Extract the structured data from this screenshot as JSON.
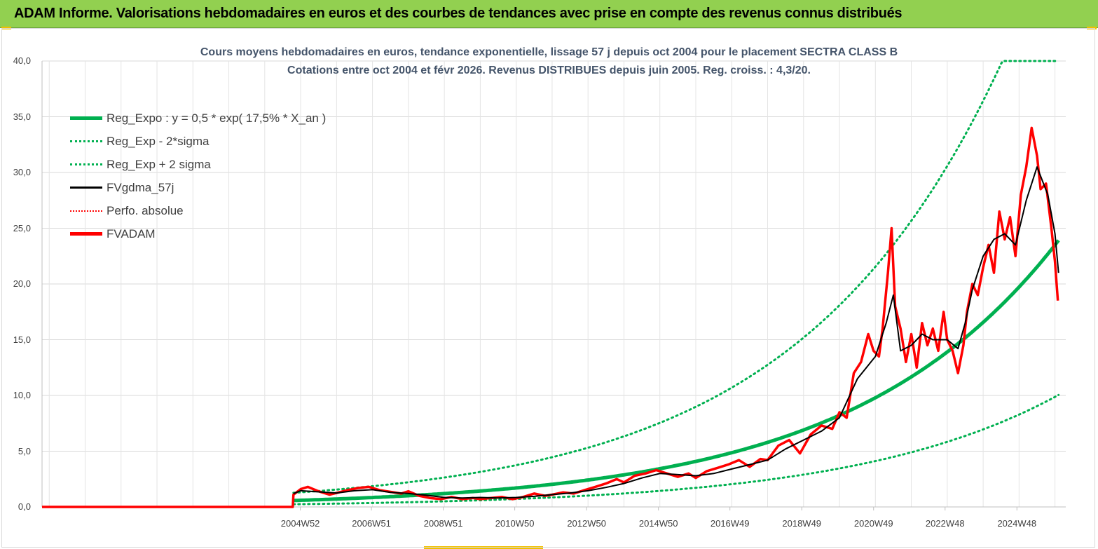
{
  "banner": {
    "title": "ADAM Informe. Valorisations hebdomadaires en euros et des courbes de tendances avec prise en compte des revenus connus distribués"
  },
  "colors": {
    "banner": "#92d050",
    "reg_expo": "#00b050",
    "fvgdma": "#000000",
    "fvadam": "#ff0000",
    "title": "#44546a"
  },
  "chart_data": {
    "type": "line",
    "title": "Cours moyens hebdomadaires en euros, tendance exponentielle, lissage 57 j depuis oct 2004 pour le placement SECTRA CLASS B",
    "subtitle": "Cotations entre oct 2004 et févr 2026. Revenus DISTRIBUES depuis juin 2005. Reg. croiss. : 4,3/20.",
    "xlabel": "",
    "ylabel": "",
    "ylim": [
      0,
      40
    ],
    "xlim": [
      1997.8,
      2026.3
    ],
    "grid": true,
    "legend_position": "top-left",
    "y_ticks": [
      "0,0",
      "5,0",
      "10,0",
      "15,0",
      "20,0",
      "25,0",
      "30,0",
      "35,0",
      "40,0"
    ],
    "x_ticks": [
      {
        "label": "2004W52",
        "year": 2004.99
      },
      {
        "label": "2006W51",
        "year": 2006.97
      },
      {
        "label": "2008W51",
        "year": 2008.97
      },
      {
        "label": "2010W50",
        "year": 2010.96
      },
      {
        "label": "2012W50",
        "year": 2012.96
      },
      {
        "label": "2014W50",
        "year": 2014.96
      },
      {
        "label": "2016W49",
        "year": 2016.95
      },
      {
        "label": "2018W49",
        "year": 2018.95
      },
      {
        "label": "2020W49",
        "year": 2020.95
      },
      {
        "label": "2022W48",
        "year": 2022.94
      },
      {
        "label": "2024W48",
        "year": 2024.94
      }
    ],
    "regression": {
      "a": 0.5,
      "rate": 0.175,
      "t0": 2004.0,
      "sigma_factor_upper": 2.2,
      "sigma_factor_lower": 0.42
    },
    "series": [
      {
        "name": "Reg_Expo : y = 0,5 * exp( 17,5% *  X_an )",
        "style": "thick-solid",
        "color": "#00b050"
      },
      {
        "name": "Reg_Exp - 2*sigma",
        "style": "dotted",
        "color": "#00b050"
      },
      {
        "name": "Reg_Exp + 2 sigma",
        "style": "dotted",
        "color": "#00b050"
      },
      {
        "name": "FVgdma_57j",
        "style": "solid",
        "color": "#000000",
        "x": [
          2004.8,
          2005.0,
          2005.5,
          2006.0,
          2006.5,
          2007.0,
          2007.5,
          2008.0,
          2008.5,
          2009.0,
          2009.5,
          2010.0,
          2010.5,
          2011.0,
          2011.5,
          2012.0,
          2012.5,
          2013.0,
          2013.5,
          2014.0,
          2014.5,
          2015.0,
          2015.5,
          2016.0,
          2016.5,
          2017.0,
          2017.5,
          2018.0,
          2018.5,
          2019.0,
          2019.5,
          2020.0,
          2020.5,
          2021.0,
          2021.3,
          2021.5,
          2021.7,
          2022.0,
          2022.3,
          2022.6,
          2023.0,
          2023.3,
          2023.5,
          2023.7,
          2024.0,
          2024.3,
          2024.6,
          2024.9,
          2025.2,
          2025.5,
          2025.8,
          2026.0,
          2026.1
        ],
        "values": [
          1.2,
          1.45,
          1.35,
          1.25,
          1.45,
          1.55,
          1.3,
          1.2,
          1.05,
          0.85,
          0.8,
          0.85,
          0.8,
          0.85,
          0.95,
          1.1,
          1.25,
          1.45,
          1.75,
          2.1,
          2.6,
          3.0,
          2.9,
          2.8,
          3.0,
          3.4,
          3.8,
          4.2,
          5.2,
          6.0,
          6.8,
          8.0,
          11.5,
          13.5,
          16.5,
          19.0,
          14.0,
          14.5,
          15.5,
          15.0,
          15.0,
          14.2,
          16.5,
          19.5,
          22.5,
          24.0,
          24.5,
          23.5,
          27.5,
          30.5,
          28.0,
          24.5,
          21.0
        ]
      },
      {
        "name": "Perfo. absolue",
        "style": "dotted",
        "color": "#ff0000"
      },
      {
        "name": "FVADAM",
        "style": "thick-solid",
        "color": "#ff0000",
        "x": [
          1997.8,
          2004.78,
          2004.8,
          2005.0,
          2005.2,
          2005.5,
          2005.8,
          2006.0,
          2006.3,
          2006.6,
          2006.9,
          2007.2,
          2007.5,
          2007.8,
          2008.0,
          2008.3,
          2008.6,
          2008.9,
          2009.2,
          2009.5,
          2009.8,
          2010.0,
          2010.3,
          2010.6,
          2010.9,
          2011.2,
          2011.5,
          2011.8,
          2012.0,
          2012.3,
          2012.6,
          2012.9,
          2013.2,
          2013.5,
          2013.8,
          2014.0,
          2014.3,
          2014.6,
          2014.9,
          2015.2,
          2015.5,
          2015.8,
          2016.0,
          2016.3,
          2016.6,
          2016.9,
          2017.2,
          2017.5,
          2017.8,
          2018.0,
          2018.3,
          2018.6,
          2018.9,
          2019.2,
          2019.5,
          2019.8,
          2020.0,
          2020.2,
          2020.4,
          2020.6,
          2020.8,
          2020.95,
          2021.1,
          2021.2,
          2021.35,
          2021.45,
          2021.55,
          2021.7,
          2021.85,
          2022.0,
          2022.15,
          2022.3,
          2022.45,
          2022.6,
          2022.75,
          2022.9,
          2023.0,
          2023.15,
          2023.3,
          2023.45,
          2023.55,
          2023.7,
          2023.85,
          2024.0,
          2024.15,
          2024.3,
          2024.45,
          2024.6,
          2024.75,
          2024.9,
          2025.05,
          2025.2,
          2025.35,
          2025.5,
          2025.6,
          2025.75,
          2025.9,
          2026.0,
          2026.08
        ],
        "values": [
          0,
          0,
          1.1,
          1.6,
          1.8,
          1.4,
          1.1,
          1.25,
          1.5,
          1.7,
          1.8,
          1.5,
          1.35,
          1.2,
          1.4,
          1.0,
          0.8,
          0.7,
          0.9,
          0.7,
          0.8,
          0.7,
          0.8,
          0.9,
          0.7,
          0.9,
          1.2,
          1.0,
          1.1,
          1.3,
          1.2,
          1.5,
          1.8,
          2.1,
          2.5,
          2.2,
          2.8,
          3.0,
          3.3,
          3.0,
          2.7,
          3.0,
          2.6,
          3.2,
          3.5,
          3.8,
          4.2,
          3.6,
          4.3,
          4.2,
          5.5,
          6.0,
          4.8,
          6.5,
          7.3,
          7.0,
          8.5,
          8.0,
          12.0,
          13.0,
          15.5,
          14.0,
          13.5,
          16.0,
          21.0,
          25.0,
          18.0,
          16.0,
          13.0,
          15.5,
          12.5,
          16.5,
          14.5,
          16.0,
          14.0,
          17.5,
          15.0,
          14.0,
          12.0,
          14.5,
          17.5,
          20.0,
          19.0,
          21.5,
          23.5,
          21.0,
          26.5,
          24.0,
          26.0,
          22.5,
          28.0,
          30.5,
          34.0,
          31.5,
          28.5,
          29.0,
          25.0,
          22.0,
          18.5
        ]
      }
    ]
  }
}
